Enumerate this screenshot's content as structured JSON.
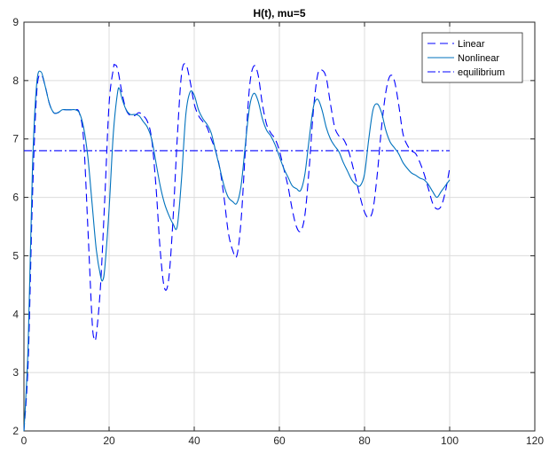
{
  "chart_data": {
    "type": "line",
    "title": "H(t), mu=5",
    "xlabel": "",
    "ylabel": "",
    "xlim": [
      0,
      120
    ],
    "ylim": [
      2,
      9
    ],
    "xticks": [
      0,
      20,
      40,
      60,
      80,
      100,
      120
    ],
    "yticks": [
      2,
      3,
      4,
      5,
      6,
      7,
      8,
      9
    ],
    "grid": true,
    "legend_position": "top-right",
    "series": [
      {
        "name": "Linear",
        "style": "dashed",
        "color": "#0000ff",
        "points": [
          [
            0,
            2.0
          ],
          [
            1,
            3.2
          ],
          [
            2,
            6.0
          ],
          [
            3,
            7.8
          ],
          [
            4,
            8.1
          ],
          [
            5,
            7.9
          ],
          [
            6,
            7.6
          ],
          [
            7,
            7.45
          ],
          [
            8,
            7.45
          ],
          [
            9,
            7.5
          ],
          [
            10,
            7.5
          ],
          [
            11,
            7.5
          ],
          [
            12,
            7.5
          ],
          [
            13,
            7.45
          ],
          [
            14,
            7.0
          ],
          [
            15,
            5.5
          ],
          [
            16,
            3.9
          ],
          [
            16.5,
            3.58
          ],
          [
            17,
            3.65
          ],
          [
            18,
            4.5
          ],
          [
            19,
            6.0
          ],
          [
            20,
            7.6
          ],
          [
            21,
            8.2
          ],
          [
            21.3,
            8.27
          ],
          [
            22,
            8.2
          ],
          [
            23,
            7.8
          ],
          [
            24,
            7.5
          ],
          [
            25,
            7.4
          ],
          [
            26,
            7.4
          ],
          [
            27,
            7.45
          ],
          [
            28,
            7.4
          ],
          [
            29,
            7.3
          ],
          [
            30,
            7.0
          ],
          [
            31,
            6.2
          ],
          [
            32,
            5.1
          ],
          [
            33,
            4.45
          ],
          [
            34,
            4.6
          ],
          [
            35,
            5.6
          ],
          [
            36,
            7.0
          ],
          [
            37,
            8.1
          ],
          [
            38,
            8.28
          ],
          [
            39,
            8.0
          ],
          [
            40,
            7.6
          ],
          [
            41,
            7.4
          ],
          [
            42,
            7.3
          ],
          [
            43,
            7.2
          ],
          [
            44,
            7.0
          ],
          [
            45,
            6.8
          ],
          [
            46,
            6.5
          ],
          [
            47,
            6.0
          ],
          [
            48,
            5.4
          ],
          [
            49,
            5.1
          ],
          [
            50,
            5.0
          ],
          [
            51,
            5.6
          ],
          [
            52,
            6.8
          ],
          [
            53,
            7.9
          ],
          [
            54,
            8.25
          ],
          [
            55,
            8.1
          ],
          [
            56,
            7.6
          ],
          [
            57,
            7.25
          ],
          [
            58,
            7.1
          ],
          [
            59,
            7.0
          ],
          [
            60,
            6.8
          ],
          [
            61,
            6.5
          ],
          [
            62,
            6.2
          ],
          [
            63,
            5.8
          ],
          [
            64,
            5.5
          ],
          [
            65,
            5.42
          ],
          [
            66,
            5.7
          ],
          [
            67,
            6.5
          ],
          [
            68,
            7.5
          ],
          [
            69,
            8.1
          ],
          [
            70,
            8.18
          ],
          [
            71,
            8.05
          ],
          [
            72,
            7.6
          ],
          [
            73,
            7.2
          ],
          [
            74,
            7.05
          ],
          [
            75,
            7.0
          ],
          [
            76,
            6.85
          ],
          [
            77,
            6.6
          ],
          [
            78,
            6.3
          ],
          [
            79,
            6.0
          ],
          [
            80,
            5.75
          ],
          [
            81,
            5.65
          ],
          [
            82,
            5.8
          ],
          [
            83,
            6.4
          ],
          [
            84,
            7.2
          ],
          [
            85,
            7.8
          ],
          [
            86,
            8.08
          ],
          [
            87,
            8.0
          ],
          [
            88,
            7.6
          ],
          [
            89,
            7.1
          ],
          [
            90,
            6.9
          ],
          [
            91,
            6.8
          ],
          [
            92,
            6.75
          ],
          [
            93,
            6.6
          ],
          [
            94,
            6.4
          ],
          [
            95,
            6.15
          ],
          [
            96,
            5.9
          ],
          [
            97,
            5.8
          ],
          [
            98,
            5.85
          ],
          [
            99,
            6.1
          ],
          [
            100,
            6.5
          ]
        ]
      },
      {
        "name": "Nonlinear",
        "style": "solid",
        "color": "#0072bd",
        "points": [
          [
            0,
            2.0
          ],
          [
            1,
            3.5
          ],
          [
            2,
            6.5
          ],
          [
            3,
            7.95
          ],
          [
            4,
            8.15
          ],
          [
            5,
            7.9
          ],
          [
            6,
            7.6
          ],
          [
            7,
            7.45
          ],
          [
            8,
            7.45
          ],
          [
            9,
            7.5
          ],
          [
            10,
            7.5
          ],
          [
            11,
            7.5
          ],
          [
            12,
            7.5
          ],
          [
            13,
            7.45
          ],
          [
            14,
            7.2
          ],
          [
            15,
            6.7
          ],
          [
            16,
            5.9
          ],
          [
            17,
            5.1
          ],
          [
            18,
            4.65
          ],
          [
            18.5,
            4.58
          ],
          [
            19,
            4.8
          ],
          [
            20,
            5.8
          ],
          [
            21,
            7.1
          ],
          [
            22,
            7.8
          ],
          [
            22.5,
            7.85
          ],
          [
            23,
            7.7
          ],
          [
            24,
            7.5
          ],
          [
            25,
            7.42
          ],
          [
            26,
            7.42
          ],
          [
            27,
            7.4
          ],
          [
            28,
            7.3
          ],
          [
            29,
            7.2
          ],
          [
            30,
            7.0
          ],
          [
            31,
            6.6
          ],
          [
            32,
            6.2
          ],
          [
            33,
            5.9
          ],
          [
            34,
            5.7
          ],
          [
            35,
            5.55
          ],
          [
            36,
            5.5
          ],
          [
            37,
            6.3
          ],
          [
            38,
            7.4
          ],
          [
            39,
            7.8
          ],
          [
            40,
            7.75
          ],
          [
            41,
            7.5
          ],
          [
            42,
            7.35
          ],
          [
            43,
            7.25
          ],
          [
            44,
            7.1
          ],
          [
            45,
            6.8
          ],
          [
            46,
            6.5
          ],
          [
            47,
            6.2
          ],
          [
            48,
            6.0
          ],
          [
            49,
            5.93
          ],
          [
            50,
            5.9
          ],
          [
            51,
            6.2
          ],
          [
            52,
            6.9
          ],
          [
            53,
            7.55
          ],
          [
            54,
            7.78
          ],
          [
            55,
            7.65
          ],
          [
            56,
            7.35
          ],
          [
            57,
            7.15
          ],
          [
            58,
            7.05
          ],
          [
            59,
            6.9
          ],
          [
            60,
            6.7
          ],
          [
            61,
            6.5
          ],
          [
            62,
            6.35
          ],
          [
            63,
            6.2
          ],
          [
            64,
            6.15
          ],
          [
            65,
            6.12
          ],
          [
            66,
            6.4
          ],
          [
            67,
            7.0
          ],
          [
            68,
            7.55
          ],
          [
            69,
            7.68
          ],
          [
            70,
            7.5
          ],
          [
            71,
            7.2
          ],
          [
            72,
            7.0
          ],
          [
            73,
            6.88
          ],
          [
            74,
            6.78
          ],
          [
            75,
            6.6
          ],
          [
            76,
            6.45
          ],
          [
            77,
            6.3
          ],
          [
            78,
            6.22
          ],
          [
            79,
            6.2
          ],
          [
            80,
            6.4
          ],
          [
            81,
            7.0
          ],
          [
            82,
            7.5
          ],
          [
            83,
            7.6
          ],
          [
            84,
            7.45
          ],
          [
            85,
            7.15
          ],
          [
            86,
            6.95
          ],
          [
            87,
            6.85
          ],
          [
            88,
            6.75
          ],
          [
            89,
            6.6
          ],
          [
            90,
            6.5
          ],
          [
            91,
            6.42
          ],
          [
            92,
            6.38
          ],
          [
            93,
            6.33
          ],
          [
            94,
            6.3
          ],
          [
            95,
            6.22
          ],
          [
            96,
            6.1
          ],
          [
            97,
            6.0
          ],
          [
            98,
            6.1
          ],
          [
            99,
            6.2
          ],
          [
            100,
            6.3
          ]
        ]
      },
      {
        "name": "equilibrium",
        "style": "dashdot",
        "color": "#0000ff",
        "points": [
          [
            0,
            6.8
          ],
          [
            100,
            6.8
          ]
        ]
      }
    ]
  }
}
